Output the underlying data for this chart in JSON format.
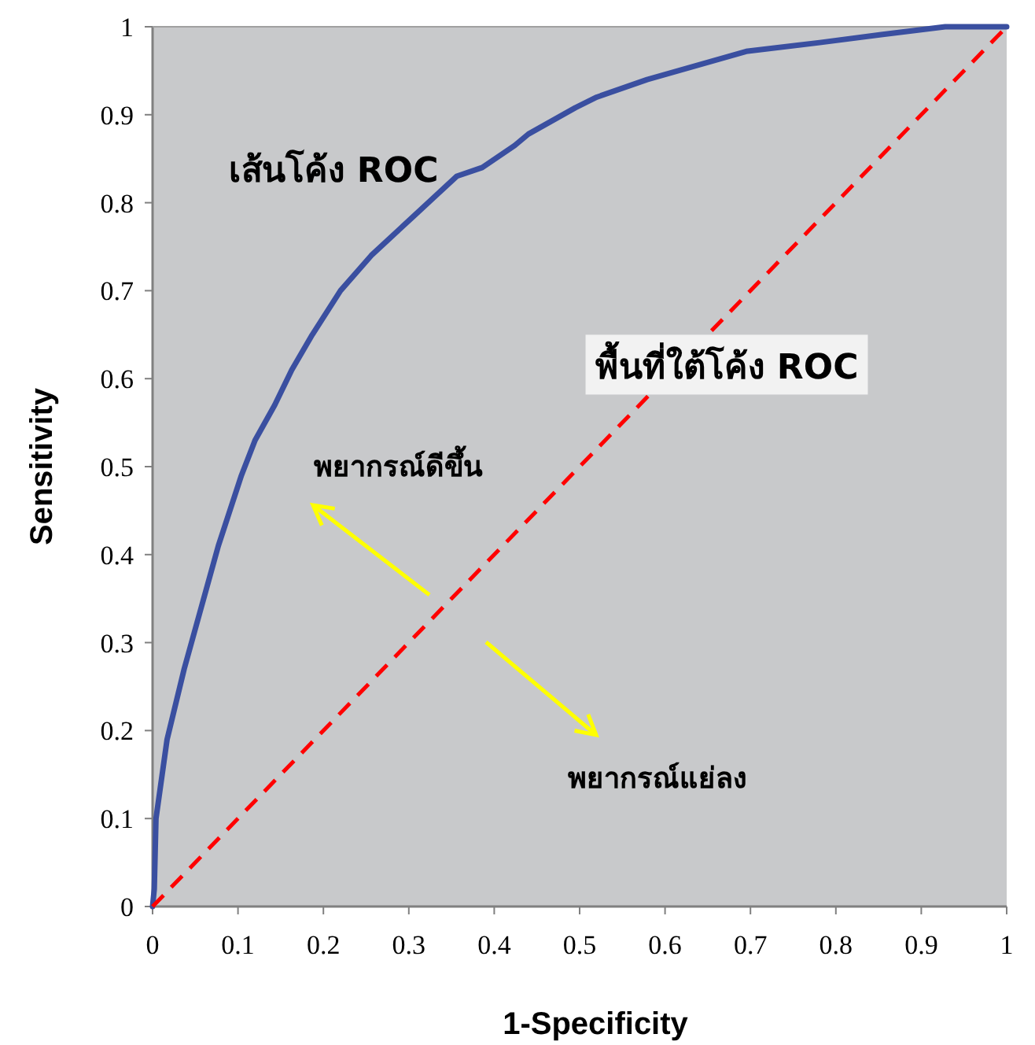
{
  "chart_data": {
    "type": "line",
    "xlabel": "1-Specificity",
    "ylabel": "Sensitivity",
    "xlim": [
      0,
      1
    ],
    "ylim": [
      0,
      1
    ],
    "xticks": [
      0,
      0.1,
      0.2,
      0.3,
      0.4,
      0.5,
      0.6,
      0.7,
      0.8,
      0.9,
      1
    ],
    "yticks": [
      0,
      0.1,
      0.2,
      0.3,
      0.4,
      0.5,
      0.6,
      0.7,
      0.8,
      0.9,
      1
    ],
    "series": [
      {
        "color": "#3a4fa0",
        "line_style": "solid",
        "x": [
          0,
          0.002,
          0.004,
          0.017,
          0.037,
          0.057,
          0.077,
          0.104,
          0.12,
          0.143,
          0.163,
          0.187,
          0.22,
          0.256,
          0.306,
          0.356,
          0.386,
          0.424,
          0.44,
          0.495,
          0.52,
          0.579,
          0.695,
          0.781,
          0.853,
          0.928,
          1
        ],
        "values": [
          0,
          0.02,
          0.1,
          0.19,
          0.27,
          0.34,
          0.41,
          0.49,
          0.53,
          0.57,
          0.61,
          0.65,
          0.7,
          0.74,
          0.785,
          0.83,
          0.84,
          0.865,
          0.878,
          0.908,
          0.92,
          0.94,
          0.972,
          0.982,
          0.991,
          1,
          1
        ]
      },
      {
        "color": "#ff0000",
        "line_style": "dashed",
        "x": [
          0,
          1
        ],
        "values": [
          0,
          1
        ]
      }
    ],
    "annotations": [
      "เส้นโค้ง ROC",
      "พื้นที่ใต้โค้ง ROC",
      "พยากรณ์ดีขึ้น",
      "พยากรณ์แย่ลง"
    ]
  }
}
